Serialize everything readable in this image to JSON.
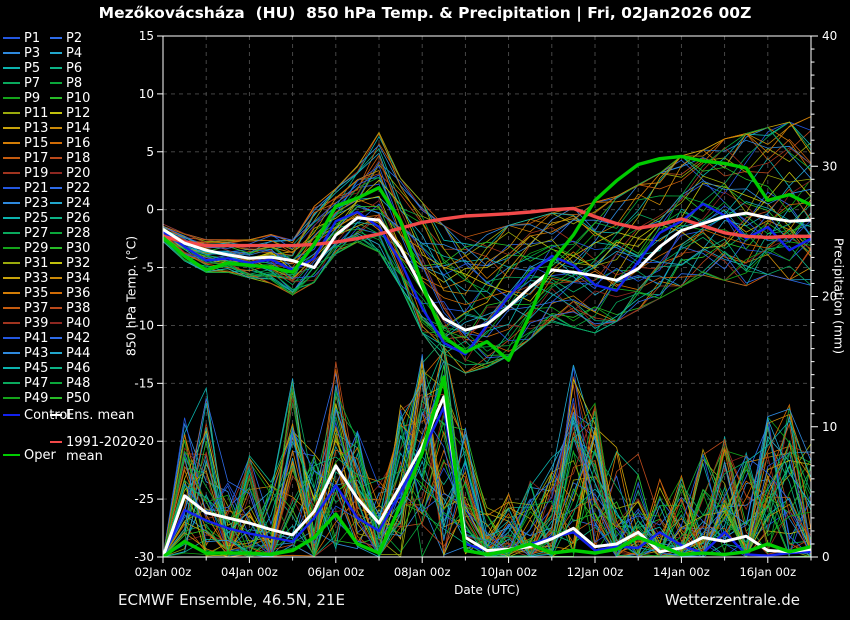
{
  "title": "Mezőkovácsháza  (HU)  850 hPa Temp. & Precipitation | Fri, 02Jan2026 00Z",
  "footer": {
    "left": "ECMWF Ensemble, 46.5N, 21E",
    "right": "Wetterzentrale.de"
  },
  "axes": {
    "left_label": "850 hPa Temp. (°C)",
    "right_label": "Precipitation (mm)",
    "x_label": "Date (UTC)",
    "temp_ticks": [
      15,
      10,
      5,
      0,
      -5,
      -10,
      -15,
      -20,
      -25,
      -30
    ],
    "precip_major_ticks": [
      40,
      30,
      20,
      10,
      0
    ],
    "x_tick_labels": [
      "02Jan 00z",
      "04Jan 00z",
      "06Jan 00z",
      "08Jan 00z",
      "10Jan 00z",
      "12Jan 00z",
      "14Jan 00z",
      "16Jan 00z"
    ],
    "x_tick_days": [
      0,
      2,
      4,
      6,
      8,
      10,
      12,
      14
    ]
  },
  "legend": {
    "member_labels": [
      "P1",
      "P2",
      "P3",
      "P4",
      "P5",
      "P6",
      "P7",
      "P8",
      "P9",
      "P10",
      "P11",
      "P12",
      "P13",
      "P14",
      "P15",
      "P16",
      "P17",
      "P18",
      "P19",
      "P20",
      "P21",
      "P22",
      "P23",
      "P24",
      "P25",
      "P26",
      "P27",
      "P28",
      "P29",
      "P30",
      "P31",
      "P32",
      "P33",
      "P34",
      "P35",
      "P36",
      "P37",
      "P38",
      "P39",
      "P40",
      "P41",
      "P42",
      "P43",
      "P44",
      "P45",
      "P46",
      "P47",
      "P48",
      "P49",
      "P50"
    ],
    "member_palette": [
      "#2457e0",
      "#2e6be8",
      "#2e89dd",
      "#22a7cc",
      "#0bb3ae",
      "#0cb386",
      "#0aa95d",
      "#0aa73b",
      "#14a41a",
      "#27bb27",
      "#9aaa0c",
      "#c2c20d",
      "#c8a30a",
      "#cb8a08",
      "#d37d06",
      "#d06b06",
      "#c55b0f",
      "#bb491b",
      "#a0341f",
      "#8d2721"
    ],
    "control_label": "Control",
    "ens_mean_label": "Ens. mean",
    "climate_label_line1": "1991-2020",
    "climate_label_line2": "mean",
    "oper_label": "Oper",
    "control_color": "#1322ee",
    "ens_mean_color": "#ffffff",
    "climate_color": "#f24a4a",
    "oper_color": "#00cc00"
  },
  "chart_data": {
    "type": "line",
    "title": "Mezőkovácsháza (HU) 850 hPa Temp. & Precipitation | Fri, 02Jan2026 00Z",
    "x_unit": "days since 02Jan2026 00Z",
    "x_range": [
      0,
      15
    ],
    "x_days": [
      0,
      0.5,
      1,
      1.5,
      2,
      2.5,
      3,
      3.5,
      4,
      4.5,
      5,
      5.5,
      6,
      6.5,
      7,
      7.5,
      8,
      8.5,
      9,
      9.5,
      10,
      10.5,
      11,
      11.5,
      12,
      12.5,
      13,
      13.5,
      14,
      14.5,
      15
    ],
    "temp_axis": {
      "label": "850 hPa Temp. (°C)",
      "range": [
        -30,
        15
      ],
      "grid_step": 5
    },
    "precip_axis": {
      "label": "Precipitation (mm)",
      "range": [
        0,
        40
      ],
      "label_step": 10
    },
    "grid": true,
    "legend_position": "left",
    "series": [
      {
        "name": "Control temp",
        "axis": "temp",
        "color": "#1322ee",
        "width": 2.4,
        "values": [
          -1.9,
          -3.2,
          -4.4,
          -4.2,
          -4.6,
          -4.3,
          -5.2,
          -4.2,
          -1.0,
          -0.2,
          -1.5,
          -4.5,
          -8.5,
          -11.5,
          -12.5,
          -10.0,
          -7.5,
          -5.5,
          -4.0,
          -4.8,
          -6.5,
          -7.0,
          -4.5,
          -2.0,
          -1.0,
          0.5,
          -0.5,
          -2.5,
          -1.5,
          -3.5,
          -2.5
        ]
      },
      {
        "name": "Control precip",
        "axis": "precip",
        "color": "#1322ee",
        "width": 2.4,
        "values": [
          0,
          3.6,
          2.8,
          2.2,
          1.8,
          1.5,
          1.2,
          3.0,
          5.5,
          3.0,
          2.0,
          5.0,
          8.0,
          11.5,
          1.0,
          0.5,
          0.5,
          1.0,
          1.5,
          1.9,
          0.5,
          0.8,
          0.7,
          1.9,
          0.9,
          0.3,
          1.9,
          0.2,
          0.1,
          0.3,
          0.4
        ]
      },
      {
        "name": "1991-2020 mean temp",
        "axis": "temp",
        "color": "#f24a4a",
        "width": 3.4,
        "values": [
          -2.3,
          -2.8,
          -3.1,
          -3.1,
          -3.1,
          -3.1,
          -3.1,
          -3.0,
          -2.8,
          -2.5,
          -2.1,
          -1.6,
          -1.1,
          -0.8,
          -0.55,
          -0.45,
          -0.35,
          -0.2,
          0.0,
          0.1,
          -0.6,
          -1.2,
          -1.6,
          -1.3,
          -0.8,
          -1.4,
          -2.0,
          -2.3,
          -2.4,
          -2.3,
          -2.3
        ]
      },
      {
        "name": "Ens. mean temp",
        "axis": "temp",
        "color": "#ffffff",
        "width": 3.0,
        "values": [
          -1.7,
          -2.9,
          -3.5,
          -3.9,
          -4.2,
          -4.1,
          -4.4,
          -5.0,
          -2.2,
          -0.7,
          -0.9,
          -3.3,
          -6.8,
          -9.4,
          -10.4,
          -9.9,
          -8.4,
          -6.7,
          -5.2,
          -5.4,
          -5.7,
          -6.1,
          -5.1,
          -3.2,
          -1.8,
          -1.2,
          -0.6,
          -0.3,
          -0.7,
          -1.0,
          -0.9
        ]
      },
      {
        "name": "Ens. mean precip",
        "axis": "precip",
        "color": "#ffffff",
        "width": 3.0,
        "values": [
          0,
          4.7,
          3.4,
          3.0,
          2.6,
          2.1,
          1.7,
          3.5,
          7.0,
          4.5,
          2.6,
          5.5,
          8.5,
          12.3,
          1.5,
          0.5,
          0.6,
          0.8,
          1.4,
          2.2,
          0.8,
          1.0,
          1.9,
          0.4,
          0.7,
          1.5,
          1.2,
          1.6,
          0.5,
          0.4,
          0.6
        ]
      },
      {
        "name": "Oper temp",
        "axis": "temp",
        "color": "#00cc00",
        "width": 3.4,
        "values": [
          -2.4,
          -4.0,
          -5.2,
          -4.6,
          -4.8,
          -5.0,
          -5.4,
          -3.0,
          0.3,
          1.0,
          1.9,
          -1.0,
          -6.5,
          -11.0,
          -12.3,
          -11.4,
          -13.0,
          -9.0,
          -4.5,
          -2.2,
          0.8,
          2.5,
          3.9,
          4.4,
          4.6,
          4.2,
          4.0,
          3.6,
          0.8,
          1.3,
          0.4
        ]
      },
      {
        "name": "Oper precip",
        "axis": "precip",
        "color": "#00cc00",
        "width": 3.4,
        "values": [
          0,
          1.2,
          0.3,
          0.3,
          0.3,
          0.2,
          0.5,
          1.5,
          3.3,
          1.0,
          0.3,
          4.0,
          8.0,
          13.8,
          0.5,
          0.2,
          0.5,
          1.0,
          0.3,
          0.5,
          0.3,
          0.6,
          1.5,
          0.9,
          0.2,
          0.3,
          0.2,
          0.4,
          1.0,
          0.4,
          0.8
        ]
      }
    ],
    "ensemble_envelope": {
      "note": "50 ensemble members (P1-P50) span these approximate bounds",
      "temp_min": [
        -2.8,
        -4.5,
        -5.5,
        -5.5,
        -6.0,
        -6.5,
        -7.5,
        -6.5,
        -4.0,
        -3.0,
        -4.0,
        -7.0,
        -11.0,
        -13.5,
        -14.5,
        -14.0,
        -13.0,
        -11.5,
        -10.0,
        -10.5,
        -11.0,
        -10.0,
        -9.0,
        -8.0,
        -7.0,
        -6.0,
        -6.5,
        -7.0,
        -6.0,
        -6.5,
        -7.0
      ],
      "temp_max": [
        -1.2,
        -2.0,
        -2.5,
        -2.5,
        -2.5,
        -2.0,
        -2.5,
        0.5,
        2.0,
        4.0,
        7.0,
        3.0,
        1.0,
        -1.0,
        -2.0,
        -1.5,
        -1.0,
        -0.5,
        0.0,
        0.5,
        1.0,
        1.5,
        2.5,
        3.5,
        5.0,
        5.5,
        6.5,
        7.0,
        7.5,
        8.0,
        8.5
      ],
      "precip_min": [
        0,
        0,
        0,
        0,
        0,
        0,
        0,
        0,
        0,
        0,
        0,
        0,
        0,
        0,
        0,
        0,
        0,
        0,
        0,
        0,
        0,
        0,
        0,
        0,
        0,
        0,
        0,
        0,
        0,
        0,
        0
      ],
      "precip_max": [
        0,
        11,
        13,
        6,
        8,
        6,
        14,
        8,
        15,
        10,
        6,
        12,
        16,
        17,
        10,
        4,
        5,
        6,
        8,
        15,
        12,
        9,
        8,
        6,
        7,
        9,
        10,
        8,
        11,
        12,
        9
      ]
    }
  }
}
